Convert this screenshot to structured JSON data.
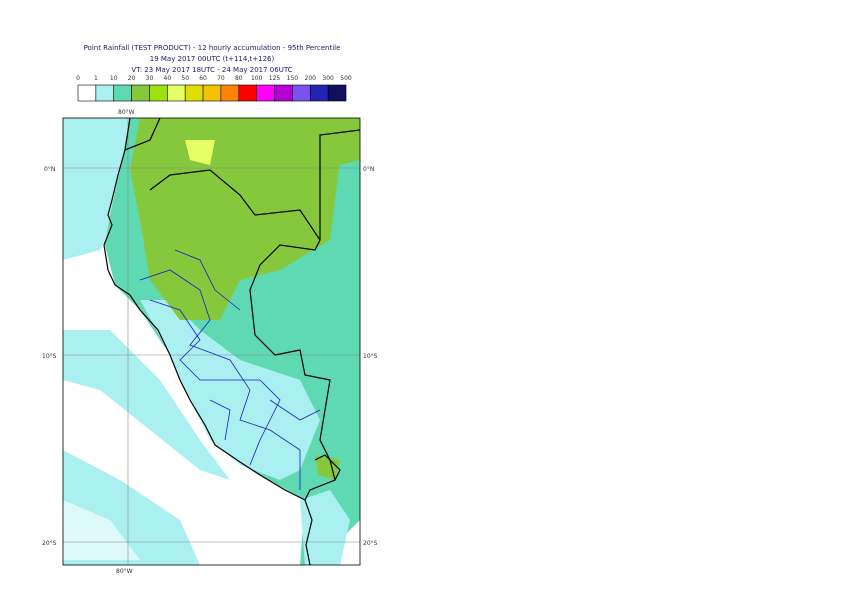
{
  "header": {
    "title": "Point Rainfall (TEST PRODUCT) - 12 hourly accumulation - 95th Percentile",
    "base_time": "19 May 2017 00UTC (t+114,t+126)",
    "valid_time": "VT: 23 May 2017 18UTC - 24 May 2017 06UTC"
  },
  "legend": {
    "thresholds": [
      0,
      1,
      10,
      20,
      30,
      40,
      50,
      60,
      70,
      80,
      100,
      125,
      150,
      200,
      300,
      500
    ],
    "colors": [
      "#ffffff",
      "#aaf0f0",
      "#5fd9b1",
      "#86c83c",
      "#9ee010",
      "#e6ff66",
      "#dede00",
      "#f2c200",
      "#ff8400",
      "#ff0000",
      "#ff00ff",
      "#b400d2",
      "#7a52f0",
      "#2424b4",
      "#10105e"
    ]
  },
  "map": {
    "lon_labels": [
      "80°W"
    ],
    "lat_labels": [
      "0°N",
      "10°S",
      "20°S"
    ]
  }
}
